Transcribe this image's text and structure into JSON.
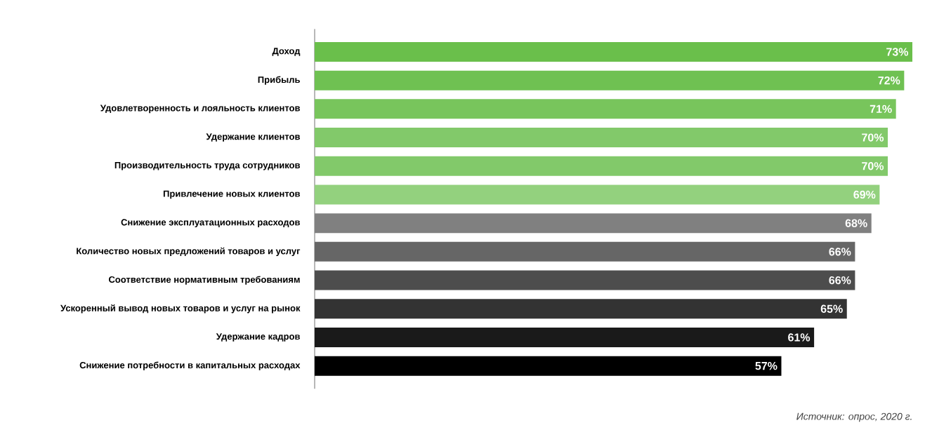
{
  "chart_data": {
    "type": "bar",
    "orientation": "horizontal",
    "categories": [
      "Доход",
      "Прибыль",
      "Удовлетворенность и лояльность клиентов",
      "Удержание клиентов",
      "Производительность труда сотрудников",
      "Привлечение новых клиентов",
      "Снижение эксплуатационных расходов",
      "Количество новых предложений товаров и услуг",
      "Соответствие нормативным требованиям",
      "Ускоренный вывод новых товаров и услуг на рынок",
      "Удержание кадров",
      "Снижение потребности в капитальных расходах"
    ],
    "values": [
      73,
      72,
      71,
      70,
      70,
      69,
      68,
      66,
      66,
      65,
      61,
      57
    ],
    "colors": [
      "#6abf4b",
      "#6fc152",
      "#78c55c",
      "#82c96a",
      "#82c96a",
      "#93d17e",
      "#808080",
      "#666666",
      "#4d4d4d",
      "#333333",
      "#1a1a1a",
      "#000000"
    ],
    "value_labels": [
      "73%",
      "72%",
      "71%",
      "70%",
      "70%",
      "69%",
      "68%",
      "66%",
      "66%",
      "65%",
      "61%",
      "57%"
    ],
    "annotations": [
      "Источник: опрос, 2020 г."
    ]
  }
}
